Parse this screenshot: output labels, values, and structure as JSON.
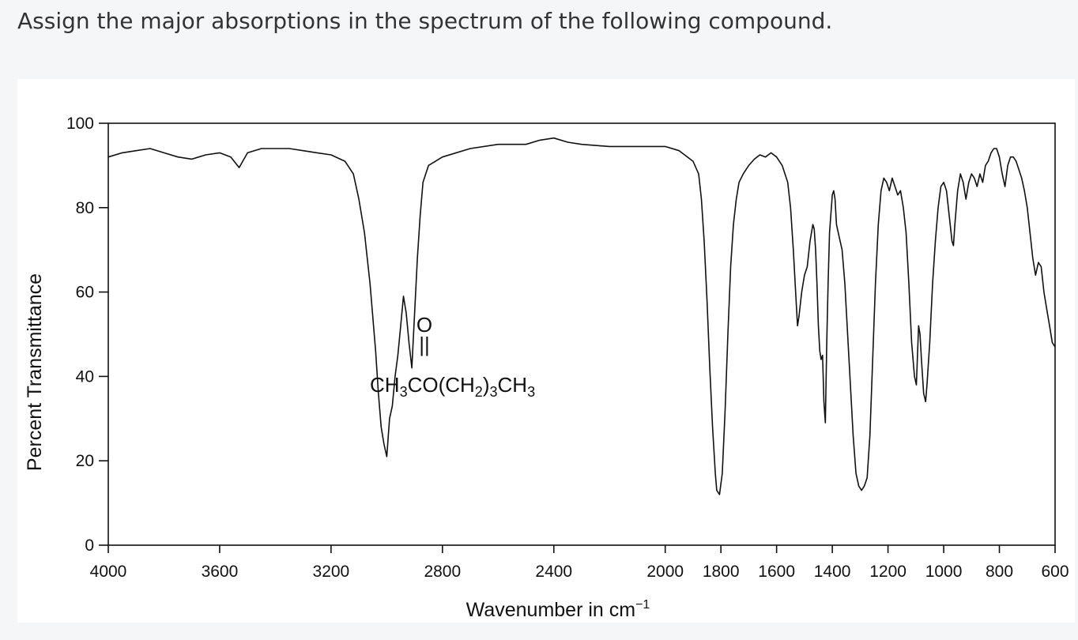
{
  "question": "Assign the major absorptions in the spectrum of the following compound.",
  "chart_data": {
    "type": "line",
    "xlabel": "Wavenumber in cm",
    "xlabel_superscript": "−1",
    "ylabel": "Percent Transmittance",
    "xlim": [
      4000,
      600
    ],
    "x_reversed": true,
    "ylim": [
      0,
      100
    ],
    "x_ticks": [
      4000,
      3600,
      3200,
      2800,
      2400,
      2000,
      1800,
      1600,
      1400,
      1200,
      1000,
      800,
      600
    ],
    "y_ticks": [
      0,
      20,
      40,
      60,
      80,
      100
    ],
    "grid": false,
    "line_color": "#111111",
    "annotation": {
      "carbonyl_o": "O",
      "carbonyl_bond": "||",
      "formula_parts": [
        "CH",
        "3",
        "CO(CH",
        "2",
        ")",
        "3",
        "CH",
        "3"
      ]
    },
    "series": [
      {
        "points": [
          [
            4000,
            92
          ],
          [
            3950,
            93
          ],
          [
            3900,
            93.5
          ],
          [
            3850,
            94
          ],
          [
            3800,
            93
          ],
          [
            3750,
            92
          ],
          [
            3700,
            91.5
          ],
          [
            3650,
            92.5
          ],
          [
            3600,
            93
          ],
          [
            3560,
            92
          ],
          [
            3530,
            89.5
          ],
          [
            3500,
            93
          ],
          [
            3450,
            94
          ],
          [
            3400,
            94
          ],
          [
            3350,
            94
          ],
          [
            3300,
            93.5
          ],
          [
            3250,
            93
          ],
          [
            3200,
            92.5
          ],
          [
            3150,
            91
          ],
          [
            3120,
            88
          ],
          [
            3100,
            82
          ],
          [
            3080,
            74
          ],
          [
            3060,
            62
          ],
          [
            3040,
            46
          ],
          [
            3030,
            36
          ],
          [
            3020,
            28
          ],
          [
            3010,
            24
          ],
          [
            3000,
            21
          ],
          [
            2990,
            30
          ],
          [
            2980,
            33
          ],
          [
            2970,
            40
          ],
          [
            2960,
            45
          ],
          [
            2950,
            52
          ],
          [
            2940,
            59
          ],
          [
            2930,
            55
          ],
          [
            2920,
            48
          ],
          [
            2910,
            42
          ],
          [
            2900,
            55
          ],
          [
            2890,
            68
          ],
          [
            2880,
            78
          ],
          [
            2870,
            86
          ],
          [
            2850,
            90
          ],
          [
            2800,
            92
          ],
          [
            2700,
            94
          ],
          [
            2600,
            95
          ],
          [
            2500,
            95
          ],
          [
            2450,
            96
          ],
          [
            2400,
            96.5
          ],
          [
            2350,
            95.5
          ],
          [
            2300,
            95
          ],
          [
            2200,
            94.5
          ],
          [
            2100,
            94.5
          ],
          [
            2000,
            94.5
          ],
          [
            1950,
            93.5
          ],
          [
            1900,
            91
          ],
          [
            1880,
            88
          ],
          [
            1870,
            82
          ],
          [
            1860,
            72
          ],
          [
            1850,
            58
          ],
          [
            1840,
            42
          ],
          [
            1830,
            28
          ],
          [
            1820,
            17
          ],
          [
            1815,
            13
          ],
          [
            1805,
            12
          ],
          [
            1795,
            17
          ],
          [
            1785,
            32
          ],
          [
            1775,
            50
          ],
          [
            1765,
            66
          ],
          [
            1755,
            76
          ],
          [
            1745,
            82
          ],
          [
            1735,
            86
          ],
          [
            1720,
            88
          ],
          [
            1700,
            90
          ],
          [
            1680,
            91.5
          ],
          [
            1660,
            92.5
          ],
          [
            1640,
            92
          ],
          [
            1620,
            93
          ],
          [
            1600,
            92
          ],
          [
            1580,
            90
          ],
          [
            1560,
            86
          ],
          [
            1550,
            80
          ],
          [
            1540,
            70
          ],
          [
            1530,
            58
          ],
          [
            1525,
            52
          ],
          [
            1520,
            54
          ],
          [
            1510,
            60
          ],
          [
            1500,
            64
          ],
          [
            1490,
            66
          ],
          [
            1480,
            72
          ],
          [
            1470,
            76
          ],
          [
            1465,
            75
          ],
          [
            1460,
            70
          ],
          [
            1455,
            62
          ],
          [
            1450,
            52
          ],
          [
            1445,
            46
          ],
          [
            1440,
            44
          ],
          [
            1435,
            45
          ],
          [
            1430,
            34
          ],
          [
            1425,
            29
          ],
          [
            1420,
            48
          ],
          [
            1415,
            62
          ],
          [
            1410,
            74
          ],
          [
            1400,
            83
          ],
          [
            1395,
            84
          ],
          [
            1390,
            82
          ],
          [
            1385,
            76
          ],
          [
            1375,
            73
          ],
          [
            1365,
            70
          ],
          [
            1355,
            62
          ],
          [
            1345,
            50
          ],
          [
            1335,
            38
          ],
          [
            1325,
            26
          ],
          [
            1315,
            17
          ],
          [
            1305,
            14
          ],
          [
            1295,
            13
          ],
          [
            1285,
            14
          ],
          [
            1275,
            16
          ],
          [
            1265,
            26
          ],
          [
            1255,
            44
          ],
          [
            1245,
            62
          ],
          [
            1235,
            76
          ],
          [
            1225,
            84
          ],
          [
            1215,
            87
          ],
          [
            1205,
            86
          ],
          [
            1195,
            84
          ],
          [
            1185,
            87
          ],
          [
            1175,
            85
          ],
          [
            1165,
            83
          ],
          [
            1155,
            84
          ],
          [
            1145,
            80
          ],
          [
            1135,
            74
          ],
          [
            1125,
            62
          ],
          [
            1115,
            48
          ],
          [
            1105,
            40
          ],
          [
            1098,
            38
          ],
          [
            1090,
            52
          ],
          [
            1085,
            50
          ],
          [
            1080,
            44
          ],
          [
            1072,
            36
          ],
          [
            1065,
            34
          ],
          [
            1060,
            38
          ],
          [
            1050,
            48
          ],
          [
            1040,
            62
          ],
          [
            1030,
            72
          ],
          [
            1020,
            80
          ],
          [
            1010,
            85
          ],
          [
            1000,
            86
          ],
          [
            990,
            84
          ],
          [
            980,
            78
          ],
          [
            970,
            72
          ],
          [
            965,
            71
          ],
          [
            960,
            76
          ],
          [
            950,
            84
          ],
          [
            940,
            88
          ],
          [
            930,
            86
          ],
          [
            920,
            82
          ],
          [
            910,
            86
          ],
          [
            900,
            88
          ],
          [
            890,
            87
          ],
          [
            880,
            85
          ],
          [
            870,
            88
          ],
          [
            860,
            86
          ],
          [
            850,
            90
          ],
          [
            840,
            91
          ],
          [
            830,
            93
          ],
          [
            820,
            94
          ],
          [
            810,
            94
          ],
          [
            800,
            92
          ],
          [
            790,
            88
          ],
          [
            780,
            85
          ],
          [
            770,
            90
          ],
          [
            760,
            92
          ],
          [
            750,
            92
          ],
          [
            740,
            91
          ],
          [
            730,
            89
          ],
          [
            720,
            87
          ],
          [
            710,
            84
          ],
          [
            700,
            80
          ],
          [
            690,
            74
          ],
          [
            680,
            68
          ],
          [
            670,
            64
          ],
          [
            660,
            67
          ],
          [
            650,
            66
          ],
          [
            640,
            60
          ],
          [
            630,
            56
          ],
          [
            620,
            52
          ],
          [
            610,
            48
          ],
          [
            600,
            47
          ]
        ]
      }
    ]
  }
}
